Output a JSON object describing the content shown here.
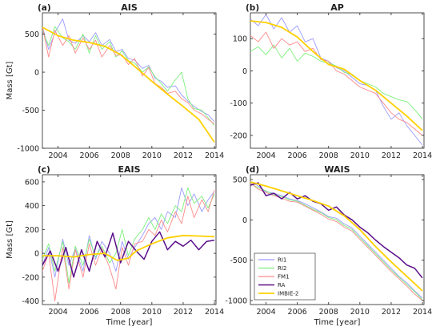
{
  "colors": {
    "RI1": "#9b9bff",
    "RI2": "#7cf07c",
    "FM1": "#ff8a8a",
    "RA": "#5a0f8a",
    "IMBIE-2": "#ffd000"
  },
  "legend": [
    "RI1",
    "RI2",
    "FM1",
    "RA",
    "IMBIE-2"
  ],
  "chart_data": [
    {
      "type": "line",
      "panel_label": "(a)",
      "title": "AIS",
      "ylabel": "Mass [Gt]",
      "xlabel": "",
      "xlim": [
        2003,
        2014.1
      ],
      "ylim": [
        -1000,
        780
      ],
      "yticks": [
        -1000,
        -500,
        0,
        500
      ],
      "xticks": [
        2004,
        2006,
        2008,
        2010,
        2012,
        2014
      ],
      "series": [
        {
          "name": "IMBIE-2",
          "x": [
            2003,
            2004,
            2005,
            2006,
            2007,
            2008,
            2009,
            2010,
            2011,
            2012,
            2013,
            2014
          ],
          "y": [
            590,
            480,
            420,
            390,
            340,
            230,
            60,
            -120,
            -290,
            -450,
            -620,
            -920
          ]
        },
        {
          "name": "RI1",
          "x": [
            2003.0,
            2003.4,
            2003.8,
            2004.3,
            2004.7,
            2005.1,
            2005.6,
            2006.0,
            2006.4,
            2006.8,
            2007.3,
            2007.7,
            2008.1,
            2008.5,
            2008.9,
            2009.4,
            2009.8,
            2010.2,
            2010.6,
            2011.0,
            2011.5,
            2011.9,
            2012.3,
            2012.7,
            2013.2,
            2013.6,
            2014.0
          ],
          "y": [
            600,
            300,
            520,
            700,
            420,
            380,
            480,
            400,
            520,
            350,
            430,
            270,
            300,
            180,
            160,
            50,
            90,
            -80,
            -120,
            -200,
            -180,
            -300,
            -380,
            -450,
            -520,
            -560,
            -650
          ]
        },
        {
          "name": "RI2",
          "x": [
            2003.0,
            2003.4,
            2003.8,
            2004.3,
            2004.7,
            2005.1,
            2005.6,
            2006.0,
            2006.4,
            2006.8,
            2007.3,
            2007.7,
            2008.1,
            2008.5,
            2008.9,
            2009.4,
            2009.8,
            2010.2,
            2010.6,
            2011.0,
            2011.5,
            2011.9,
            2012.3,
            2012.7,
            2013.2,
            2013.6,
            2014.0
          ],
          "y": [
            550,
            350,
            600,
            450,
            400,
            300,
            500,
            250,
            480,
            300,
            400,
            200,
            280,
            150,
            120,
            0,
            70,
            -60,
            -150,
            -250,
            -100,
            0,
            -350,
            -480,
            -500,
            -600,
            -700
          ]
        },
        {
          "name": "FM1",
          "x": [
            2003.0,
            2003.4,
            2003.8,
            2004.3,
            2004.7,
            2005.1,
            2005.6,
            2006.0,
            2006.4,
            2006.8,
            2007.3,
            2007.7,
            2008.1,
            2008.5,
            2008.9,
            2009.4,
            2009.8,
            2010.2,
            2010.6,
            2011.0,
            2011.5,
            2011.9,
            2012.3,
            2012.7,
            2013.2,
            2013.6,
            2014.0
          ],
          "y": [
            600,
            200,
            550,
            350,
            480,
            250,
            450,
            300,
            420,
            200,
            350,
            220,
            230,
            100,
            180,
            -50,
            60,
            -150,
            -200,
            -280,
            -250,
            -350,
            -400,
            -500,
            -550,
            -620,
            -680
          ]
        }
      ]
    },
    {
      "type": "line",
      "panel_label": "(b)",
      "title": "AP",
      "ylabel": "",
      "xlabel": "",
      "xlim": [
        2003,
        2014.1
      ],
      "ylim": [
        -240,
        180
      ],
      "yticks": [
        -200,
        -100,
        0,
        100
      ],
      "xticks": [
        2004,
        2006,
        2008,
        2010,
        2012,
        2014
      ],
      "series": [
        {
          "name": "IMBIE-2",
          "x": [
            2003,
            2004,
            2005,
            2006,
            2007,
            2008,
            2009,
            2010,
            2011,
            2012,
            2013,
            2014
          ],
          "y": [
            155,
            150,
            135,
            105,
            60,
            20,
            5,
            -30,
            -60,
            -100,
            -140,
            -185
          ]
        },
        {
          "name": "RI1",
          "x": [
            2003.0,
            2003.5,
            2004.0,
            2004.5,
            2005.0,
            2005.5,
            2006.0,
            2006.5,
            2007.0,
            2007.5,
            2008.0,
            2008.5,
            2009.0,
            2009.5,
            2010.0,
            2010.5,
            2011.0,
            2011.5,
            2012.0,
            2012.5,
            2013.0,
            2013.5,
            2014.0
          ],
          "y": [
            160,
            140,
            175,
            130,
            165,
            120,
            140,
            90,
            100,
            40,
            30,
            10,
            0,
            -20,
            -40,
            -45,
            -60,
            -110,
            -150,
            -130,
            -170,
            -200,
            -230
          ]
        },
        {
          "name": "RI2",
          "x": [
            2003.0,
            2003.5,
            2004.0,
            2004.5,
            2005.0,
            2005.5,
            2006.0,
            2006.5,
            2007.0,
            2007.5,
            2008.0,
            2008.5,
            2009.0,
            2009.5,
            2010.0,
            2010.5,
            2011.0,
            2011.5,
            2012.0,
            2012.5,
            2013.0,
            2013.5,
            2014.0
          ],
          "y": [
            60,
            75,
            50,
            80,
            40,
            70,
            30,
            55,
            45,
            30,
            25,
            15,
            -5,
            -10,
            -30,
            -40,
            -50,
            -70,
            -80,
            -90,
            -95,
            -120,
            -150
          ]
        },
        {
          "name": "FM1",
          "x": [
            2003.0,
            2003.5,
            2004.0,
            2004.5,
            2005.0,
            2005.5,
            2006.0,
            2006.5,
            2007.0,
            2007.5,
            2008.0,
            2008.5,
            2009.0,
            2009.5,
            2010.0,
            2010.5,
            2011.0,
            2011.5,
            2012.0,
            2012.5,
            2013.0,
            2013.5,
            2014.0
          ],
          "y": [
            110,
            90,
            120,
            70,
            100,
            80,
            90,
            60,
            70,
            35,
            30,
            0,
            -10,
            -30,
            -50,
            -60,
            -70,
            -100,
            -130,
            -150,
            -160,
            -180,
            -200
          ]
        }
      ]
    },
    {
      "type": "line",
      "panel_label": "(c)",
      "title": "EAIS",
      "ylabel": "Mass [Gt]",
      "xlabel": "Time [year]",
      "xlim": [
        2003,
        2014.1
      ],
      "ylim": [
        -430,
        660
      ],
      "yticks": [
        -400,
        -200,
        0,
        200,
        400,
        600
      ],
      "xticks": [
        2004,
        2006,
        2008,
        2010,
        2012,
        2014
      ],
      "series": [
        {
          "name": "IMBIE-2",
          "x": [
            2003,
            2004,
            2005,
            2006,
            2007,
            2007.8,
            2008.5,
            2009,
            2010,
            2011,
            2012,
            2013,
            2014
          ],
          "y": [
            -20,
            -20,
            -30,
            -10,
            0,
            -60,
            -40,
            20,
            80,
            130,
            150,
            145,
            140
          ]
        },
        {
          "name": "RA",
          "x": [
            2003.0,
            2003.5,
            2004.0,
            2004.5,
            2005.0,
            2005.5,
            2006.0,
            2006.5,
            2007.0,
            2007.5,
            2008.0,
            2008.5,
            2009.0,
            2009.5,
            2010.0,
            2010.5,
            2011.0,
            2011.5,
            2012.0,
            2012.5,
            2013.0,
            2013.5,
            2014.0
          ],
          "y": [
            -100,
            20,
            -150,
            50,
            -200,
            30,
            -150,
            100,
            -30,
            170,
            -80,
            100,
            20,
            -50,
            100,
            180,
            30,
            100,
            60,
            110,
            30,
            100,
            110
          ]
        },
        {
          "name": "RI1",
          "x": [
            2003.0,
            2003.4,
            2003.8,
            2004.3,
            2004.7,
            2005.1,
            2005.6,
            2006.0,
            2006.4,
            2006.8,
            2007.3,
            2007.7,
            2008.1,
            2008.5,
            2008.9,
            2009.4,
            2009.8,
            2010.2,
            2010.6,
            2011.0,
            2011.5,
            2011.9,
            2012.3,
            2012.7,
            2013.2,
            2013.6,
            2014.0
          ],
          "y": [
            -100,
            50,
            -200,
            120,
            -100,
            40,
            -150,
            150,
            -50,
            100,
            0,
            -150,
            100,
            -50,
            50,
            150,
            250,
            300,
            200,
            350,
            300,
            550,
            400,
            500,
            350,
            450,
            520
          ]
        },
        {
          "name": "RI2",
          "x": [
            2003.0,
            2003.4,
            2003.8,
            2004.3,
            2004.7,
            2005.1,
            2005.6,
            2006.0,
            2006.4,
            2006.8,
            2007.3,
            2007.7,
            2008.1,
            2008.5,
            2008.9,
            2009.4,
            2009.8,
            2010.2,
            2010.6,
            2011.0,
            2011.5,
            2011.9,
            2012.3,
            2012.7,
            2013.2,
            2013.6,
            2014.0
          ],
          "y": [
            -50,
            80,
            -150,
            100,
            -250,
            60,
            -100,
            120,
            -30,
            60,
            -80,
            0,
            200,
            -20,
            120,
            200,
            300,
            200,
            330,
            250,
            400,
            350,
            550,
            420,
            480,
            380,
            500
          ]
        },
        {
          "name": "FM1",
          "x": [
            2003.0,
            2003.4,
            2003.8,
            2004.3,
            2004.7,
            2005.1,
            2005.6,
            2006.0,
            2006.4,
            2006.8,
            2007.3,
            2007.7,
            2008.1,
            2008.5,
            2008.9,
            2009.4,
            2009.8,
            2010.2,
            2010.6,
            2011.0,
            2011.5,
            2011.9,
            2012.3,
            2012.7,
            2013.2,
            2013.6,
            2014.0
          ],
          "y": [
            -150,
            0,
            -400,
            50,
            -300,
            30,
            -200,
            80,
            -100,
            40,
            -120,
            -300,
            50,
            -100,
            80,
            100,
            200,
            150,
            280,
            180,
            350,
            250,
            480,
            300,
            450,
            350,
            530
          ]
        }
      ]
    },
    {
      "type": "line",
      "panel_label": "(d)",
      "title": "WAIS",
      "ylabel": "",
      "xlabel": "Time [year]",
      "xlim": [
        2003,
        2014.1
      ],
      "ylim": [
        -1050,
        560
      ],
      "yticks": [
        -1000,
        -500,
        0,
        500
      ],
      "xticks": [
        2004,
        2006,
        2008,
        2010,
        2012,
        2014
      ],
      "legend_position": "bottom-left",
      "series": [
        {
          "name": "IMBIE-2",
          "x": [
            2003,
            2004,
            2005,
            2006,
            2007,
            2008,
            2009,
            2010,
            2011,
            2012,
            2013,
            2014
          ],
          "y": [
            470,
            420,
            360,
            300,
            240,
            170,
            50,
            -120,
            -330,
            -520,
            -700,
            -880
          ]
        },
        {
          "name": "RA",
          "x": [
            2003.0,
            2003.5,
            2004.0,
            2004.5,
            2005.0,
            2005.5,
            2006.0,
            2006.5,
            2007.0,
            2007.5,
            2008.0,
            2008.5,
            2009.0,
            2009.5,
            2010.0,
            2010.5,
            2011.0,
            2011.5,
            2012.0,
            2012.5,
            2013.0,
            2013.5,
            2014.0
          ],
          "y": [
            430,
            460,
            300,
            330,
            260,
            340,
            260,
            300,
            230,
            200,
            120,
            160,
            60,
            0,
            -90,
            -160,
            -250,
            -330,
            -400,
            -470,
            -560,
            -600,
            -720
          ]
        },
        {
          "name": "RI1",
          "x": [
            2003.0,
            2003.5,
            2004.0,
            2004.5,
            2005.0,
            2005.5,
            2006.0,
            2006.5,
            2007.0,
            2007.5,
            2008.0,
            2008.5,
            2009.0,
            2009.5,
            2010.0,
            2010.5,
            2011.0,
            2011.5,
            2012.0,
            2012.5,
            2013.0,
            2013.5,
            2014.0
          ],
          "y": [
            480,
            420,
            350,
            330,
            300,
            260,
            240,
            200,
            150,
            100,
            40,
            20,
            -50,
            -100,
            -200,
            -300,
            -400,
            -500,
            -600,
            -700,
            -780,
            -880,
            -970
          ]
        },
        {
          "name": "RI2",
          "x": [
            2003.0,
            2003.5,
            2004.0,
            2004.5,
            2005.0,
            2005.5,
            2006.0,
            2006.5,
            2007.0,
            2007.5,
            2008.0,
            2008.5,
            2009.0,
            2009.5,
            2010.0,
            2010.5,
            2011.0,
            2011.5,
            2012.0,
            2012.5,
            2013.0,
            2013.5,
            2014.0
          ],
          "y": [
            450,
            400,
            360,
            310,
            290,
            250,
            230,
            180,
            130,
            90,
            30,
            0,
            -70,
            -120,
            -220,
            -320,
            -420,
            -520,
            -620,
            -710,
            -800,
            -890,
            -990
          ]
        },
        {
          "name": "FM1",
          "x": [
            2003.0,
            2003.5,
            2004.0,
            2004.5,
            2005.0,
            2005.5,
            2006.0,
            2006.5,
            2007.0,
            2007.5,
            2008.0,
            2008.5,
            2009.0,
            2009.5,
            2010.0,
            2010.5,
            2011.0,
            2011.5,
            2012.0,
            2012.5,
            2013.0,
            2013.5,
            2014.0
          ],
          "y": [
            460,
            380,
            340,
            300,
            270,
            230,
            220,
            170,
            120,
            70,
            10,
            -20,
            -90,
            -140,
            -240,
            -340,
            -440,
            -540,
            -640,
            -730,
            -820,
            -920,
            -1000
          ]
        }
      ]
    }
  ]
}
